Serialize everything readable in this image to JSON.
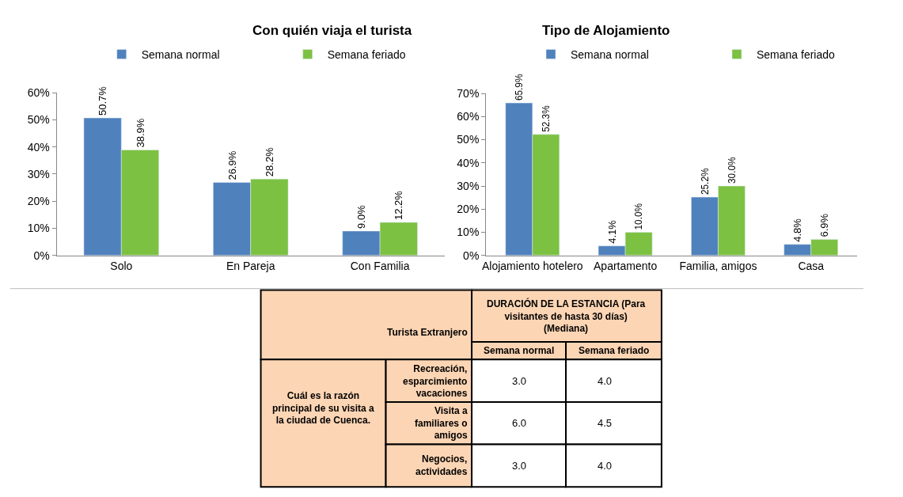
{
  "chart_data": [
    {
      "type": "bar",
      "title": "Con quién viaja el turista",
      "categories": [
        "Solo",
        "En Pareja",
        "Con Familia"
      ],
      "series": [
        {
          "name": "Semana normal",
          "color": "#4f81bd",
          "values": [
            50.7,
            26.9,
            9.0
          ],
          "value_labels": [
            "50.7%",
            "26.9%",
            "9.0%"
          ]
        },
        {
          "name": "Semana feriado",
          "color": "#7cc142",
          "values": [
            38.9,
            28.2,
            12.2
          ],
          "value_labels": [
            "38.9%",
            "28.2%",
            "12.2%"
          ]
        }
      ],
      "ylim": [
        0,
        60
      ],
      "yticks": [
        {
          "value": 0,
          "label": "0%"
        },
        {
          "value": 10,
          "label": "10%"
        },
        {
          "value": 20,
          "label": "20%"
        },
        {
          "value": 30,
          "label": "30%"
        },
        {
          "value": 40,
          "label": "40%"
        },
        {
          "value": 50,
          "label": "50%"
        },
        {
          "value": 60,
          "label": "60%"
        }
      ],
      "legend": "top"
    },
    {
      "type": "bar",
      "title": "Tipo de Alojamiento",
      "categories": [
        "Alojamiento hotelero",
        "Apartamento",
        "Familia, amigos",
        "Casa"
      ],
      "series": [
        {
          "name": "Semana normal",
          "color": "#4f81bd",
          "values": [
            65.9,
            4.1,
            25.2,
            4.8
          ],
          "value_labels": [
            "65.9%",
            "4.1%",
            "25.2%",
            "4.8%"
          ]
        },
        {
          "name": "Semana feriado",
          "color": "#7cc142",
          "values": [
            52.3,
            10.0,
            30.0,
            6.9
          ],
          "value_labels": [
            "52.3%",
            "10.0%",
            "30.0%",
            "6.9%"
          ]
        }
      ],
      "ylim": [
        0,
        70
      ],
      "yticks": [
        {
          "value": 0,
          "label": "0%"
        },
        {
          "value": 10,
          "label": "10%"
        },
        {
          "value": 20,
          "label": "20%"
        },
        {
          "value": 30,
          "label": "30%"
        },
        {
          "value": 40,
          "label": "40%"
        },
        {
          "value": 50,
          "label": "50%"
        },
        {
          "value": 60,
          "label": "60%"
        },
        {
          "value": 70,
          "label": "70%"
        }
      ],
      "legend": "top"
    },
    {
      "type": "other",
      "title": "DURACIÓN DE LA ESTANCIA (Para visitantes de hasta 30 días) (Mediana)",
      "annotations": [
        "Turista Extranjero",
        "Cuál es la razón principal de su visita a la ciudad de Cuenca."
      ],
      "categories": [
        "Semana normal",
        "Semana feriado"
      ],
      "y_categories": [
        "Recreación, esparcimiento vacaciones",
        "Visita a familiares o amigos",
        "Negocios, actividades"
      ],
      "cell_labels": [
        [
          "3.0",
          "4.0"
        ],
        [
          "6.0",
          "4.5"
        ],
        [
          "3.0",
          "4.0"
        ]
      ]
    }
  ]
}
